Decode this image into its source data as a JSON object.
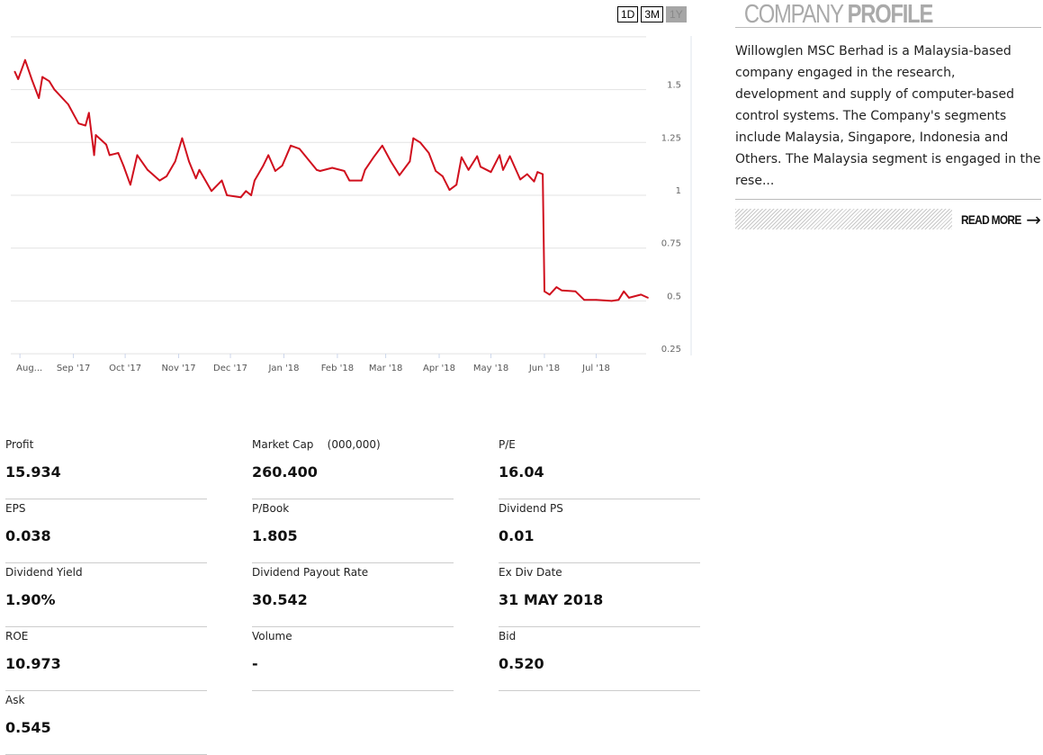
{
  "range_buttons": [
    {
      "label": "1D",
      "active": false
    },
    {
      "label": "3M",
      "active": false
    },
    {
      "label": "1Y",
      "active": true
    }
  ],
  "profile": {
    "title_light": "COMPANY",
    "title_bold": "PROFILE",
    "text": "Willowglen MSC Berhad is a Malaysia-based company engaged in the research, development and supply of computer-based control systems. The Company's segments include Malaysia, Singapore, Indonesia and Others. The Malaysia segment is engaged in the rese...",
    "read_more": "READ MORE",
    "arrow_icon": "arrow-right-icon"
  },
  "stats": [
    {
      "label": "Profit",
      "value": "15.934"
    },
    {
      "label": "Market Cap    (000,000)",
      "value": "260.400"
    },
    {
      "label": "P/E",
      "value": "16.04"
    },
    {
      "label": "EPS",
      "value": "0.038"
    },
    {
      "label": "P/Book",
      "value": "1.805"
    },
    {
      "label": "Dividend PS",
      "value": "0.01"
    },
    {
      "label": "Dividend Yield",
      "value": "1.90%"
    },
    {
      "label": "Dividend Payout Rate",
      "value": "30.542"
    },
    {
      "label": "Ex Div Date",
      "value": "31 MAY 2018"
    },
    {
      "label": "ROE",
      "value": "10.973"
    },
    {
      "label": "Volume",
      "value": "-"
    },
    {
      "label": "Bid",
      "value": "0.520"
    },
    {
      "label": "Ask",
      "value": "0.545"
    }
  ],
  "chart_data": {
    "type": "line",
    "line_color": "#d0101e",
    "grid": true,
    "ylim": [
      0.25,
      1.75
    ],
    "yticks": [
      0.25,
      0.5,
      0.75,
      1,
      1.25,
      1.5
    ],
    "ytick_labels": [
      "0.25",
      "0.5",
      "0.75",
      "1",
      "1.25",
      "1.5"
    ],
    "xlim": [
      "2017-07-29",
      "2018-07-31"
    ],
    "xticks": [
      {
        "date": "2017-08-01",
        "label": "Aug..."
      },
      {
        "date": "2017-09-01",
        "label": "Sep '17"
      },
      {
        "date": "2017-10-01",
        "label": "Oct '17"
      },
      {
        "date": "2017-11-01",
        "label": "Nov '17"
      },
      {
        "date": "2017-12-01",
        "label": "Dec '17"
      },
      {
        "date": "2018-01-01",
        "label": "Jan '18"
      },
      {
        "date": "2018-02-01",
        "label": "Feb '18"
      },
      {
        "date": "2018-03-01",
        "label": "Mar '18"
      },
      {
        "date": "2018-04-01",
        "label": "Apr '18"
      },
      {
        "date": "2018-05-01",
        "label": "May '18"
      },
      {
        "date": "2018-06-01",
        "label": "Jun '18"
      },
      {
        "date": "2018-07-01",
        "label": "Jul '18"
      }
    ],
    "series": [
      {
        "points": [
          [
            "2017-07-29",
            1.585
          ],
          [
            "2017-07-31",
            1.55
          ],
          [
            "2017-08-04",
            1.64
          ],
          [
            "2017-08-08",
            1.545
          ],
          [
            "2017-08-12",
            1.46
          ],
          [
            "2017-08-14",
            1.56
          ],
          [
            "2017-08-18",
            1.54
          ],
          [
            "2017-08-21",
            1.5
          ],
          [
            "2017-08-29",
            1.43
          ],
          [
            "2017-09-04",
            1.34
          ],
          [
            "2017-09-08",
            1.33
          ],
          [
            "2017-09-10",
            1.39
          ],
          [
            "2017-09-13",
            1.19
          ],
          [
            "2017-09-14",
            1.285
          ],
          [
            "2017-09-20",
            1.24
          ],
          [
            "2017-09-22",
            1.19
          ],
          [
            "2017-09-27",
            1.2
          ],
          [
            "2017-09-30",
            1.14
          ],
          [
            "2017-10-04",
            1.05
          ],
          [
            "2017-10-08",
            1.19
          ],
          [
            "2017-10-14",
            1.12
          ],
          [
            "2017-10-21",
            1.07
          ],
          [
            "2017-10-25",
            1.09
          ],
          [
            "2017-10-30",
            1.16
          ],
          [
            "2017-11-03",
            1.27
          ],
          [
            "2017-11-07",
            1.16
          ],
          [
            "2017-11-11",
            1.08
          ],
          [
            "2017-11-13",
            1.12
          ],
          [
            "2017-11-20",
            1.02
          ],
          [
            "2017-11-26",
            1.07
          ],
          [
            "2017-11-29",
            1.0
          ],
          [
            "2017-12-07",
            0.99
          ],
          [
            "2017-12-10",
            1.02
          ],
          [
            "2017-12-13",
            1.0
          ],
          [
            "2017-12-15",
            1.07
          ],
          [
            "2017-12-20",
            1.14
          ],
          [
            "2017-12-23",
            1.19
          ],
          [
            "2017-12-27",
            1.115
          ],
          [
            "2017-12-31",
            1.14
          ],
          [
            "2018-01-05",
            1.235
          ],
          [
            "2018-01-10",
            1.22
          ],
          [
            "2018-01-20",
            1.12
          ],
          [
            "2018-01-22",
            1.115
          ],
          [
            "2018-01-29",
            1.13
          ],
          [
            "2018-02-05",
            1.115
          ],
          [
            "2018-02-08",
            1.07
          ],
          [
            "2018-02-15",
            1.07
          ],
          [
            "2018-02-17",
            1.12
          ],
          [
            "2018-02-22",
            1.18
          ],
          [
            "2018-02-27",
            1.235
          ],
          [
            "2018-03-04",
            1.16
          ],
          [
            "2018-03-09",
            1.095
          ],
          [
            "2018-03-15",
            1.16
          ],
          [
            "2018-03-17",
            1.27
          ],
          [
            "2018-03-21",
            1.25
          ],
          [
            "2018-03-26",
            1.2
          ],
          [
            "2018-03-30",
            1.115
          ],
          [
            "2018-04-03",
            1.09
          ],
          [
            "2018-04-07",
            1.025
          ],
          [
            "2018-04-11",
            1.05
          ],
          [
            "2018-04-14",
            1.18
          ],
          [
            "2018-04-18",
            1.12
          ],
          [
            "2018-04-23",
            1.185
          ],
          [
            "2018-04-25",
            1.135
          ],
          [
            "2018-05-01",
            1.11
          ],
          [
            "2018-05-06",
            1.19
          ],
          [
            "2018-05-08",
            1.12
          ],
          [
            "2018-05-12",
            1.185
          ],
          [
            "2018-05-18",
            1.075
          ],
          [
            "2018-05-22",
            1.1
          ],
          [
            "2018-05-26",
            1.065
          ],
          [
            "2018-05-28",
            1.11
          ],
          [
            "2018-05-31",
            1.1
          ],
          [
            "2018-06-01",
            0.545
          ],
          [
            "2018-06-04",
            0.53
          ],
          [
            "2018-06-08",
            0.565
          ],
          [
            "2018-06-11",
            0.55
          ],
          [
            "2018-06-19",
            0.545
          ],
          [
            "2018-06-24",
            0.505
          ],
          [
            "2018-07-01",
            0.505
          ],
          [
            "2018-07-10",
            0.5
          ],
          [
            "2018-07-14",
            0.505
          ],
          [
            "2018-07-17",
            0.545
          ],
          [
            "2018-07-20",
            0.515
          ],
          [
            "2018-07-27",
            0.53
          ],
          [
            "2018-07-31",
            0.515
          ]
        ]
      }
    ]
  }
}
